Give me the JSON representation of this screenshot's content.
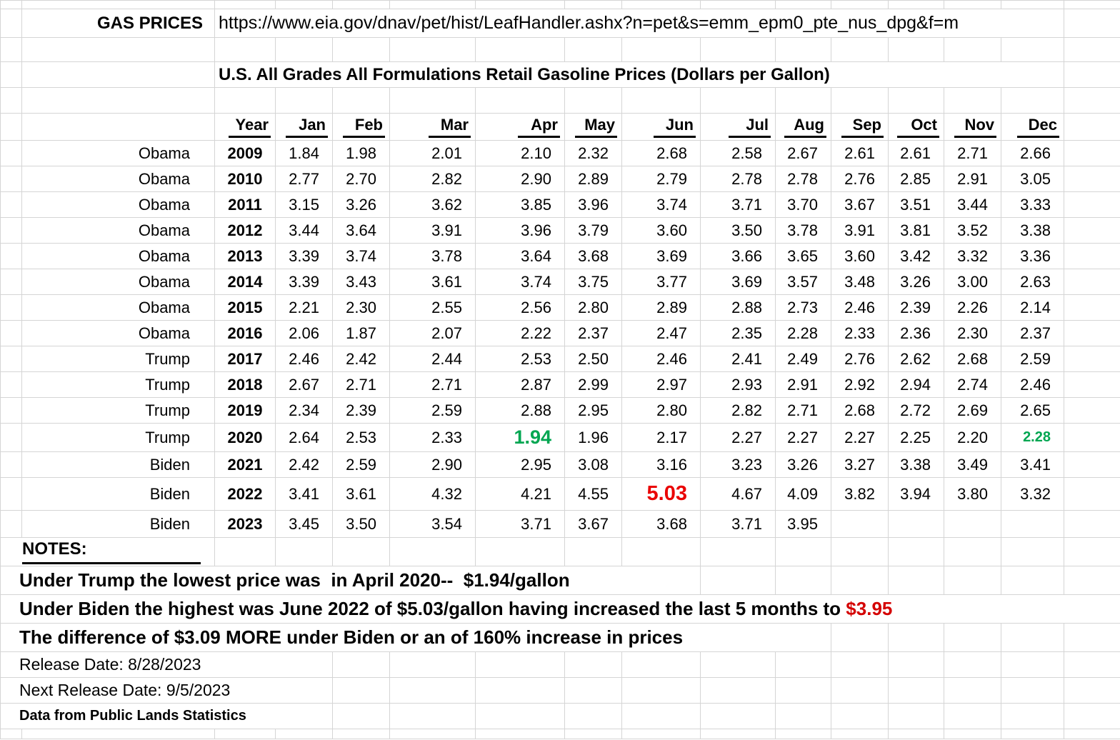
{
  "sheet": {
    "label": "GAS PRICES",
    "url": "https://www.eia.gov/dnav/pet/hist/LeafHandler.ashx?n=pet&s=emm_epm0_pte_nus_dpg&f=m",
    "title": "U.S. All Grades All Formulations Retail Gasoline Prices (Dollars per Gallon)"
  },
  "colors": {
    "highlight_green": "#00A651",
    "highlight_red": "#EA0000",
    "note_red": "#D40000"
  },
  "table": {
    "columns": [
      "Year",
      "Jan",
      "Feb",
      "Mar",
      "Apr",
      "May",
      "Jun",
      "Jul",
      "Aug",
      "Sep",
      "Oct",
      "Nov",
      "Dec"
    ],
    "rows": [
      {
        "president": "Obama",
        "year": "2009",
        "values": [
          "1.84",
          "1.98",
          "2.01",
          "2.10",
          "2.32",
          "2.68",
          "2.58",
          "2.67",
          "2.61",
          "2.61",
          "2.71",
          "2.66"
        ]
      },
      {
        "president": "Obama",
        "year": "2010",
        "values": [
          "2.77",
          "2.70",
          "2.82",
          "2.90",
          "2.89",
          "2.79",
          "2.78",
          "2.78",
          "2.76",
          "2.85",
          "2.91",
          "3.05"
        ]
      },
      {
        "president": "Obama",
        "year": "2011",
        "values": [
          "3.15",
          "3.26",
          "3.62",
          "3.85",
          "3.96",
          "3.74",
          "3.71",
          "3.70",
          "3.67",
          "3.51",
          "3.44",
          "3.33"
        ]
      },
      {
        "president": "Obama",
        "year": "2012",
        "values": [
          "3.44",
          "3.64",
          "3.91",
          "3.96",
          "3.79",
          "3.60",
          "3.50",
          "3.78",
          "3.91",
          "3.81",
          "3.52",
          "3.38"
        ]
      },
      {
        "president": "Obama",
        "year": "2013",
        "values": [
          "3.39",
          "3.74",
          "3.78",
          "3.64",
          "3.68",
          "3.69",
          "3.66",
          "3.65",
          "3.60",
          "3.42",
          "3.32",
          "3.36"
        ]
      },
      {
        "president": "Obama",
        "year": "2014",
        "values": [
          "3.39",
          "3.43",
          "3.61",
          "3.74",
          "3.75",
          "3.77",
          "3.69",
          "3.57",
          "3.48",
          "3.26",
          "3.00",
          "2.63"
        ]
      },
      {
        "president": "Obama",
        "year": "2015",
        "values": [
          "2.21",
          "2.30",
          "2.55",
          "2.56",
          "2.80",
          "2.89",
          "2.88",
          "2.73",
          "2.46",
          "2.39",
          "2.26",
          "2.14"
        ]
      },
      {
        "president": "Obama",
        "year": "2016",
        "values": [
          "2.06",
          "1.87",
          "2.07",
          "2.22",
          "2.37",
          "2.47",
          "2.35",
          "2.28",
          "2.33",
          "2.36",
          "2.30",
          "2.37"
        ]
      },
      {
        "president": "Trump",
        "year": "2017",
        "values": [
          "2.46",
          "2.42",
          "2.44",
          "2.53",
          "2.50",
          "2.46",
          "2.41",
          "2.49",
          "2.76",
          "2.62",
          "2.68",
          "2.59"
        ]
      },
      {
        "president": "Trump",
        "year": "2018",
        "values": [
          "2.67",
          "2.71",
          "2.71",
          "2.87",
          "2.99",
          "2.97",
          "2.93",
          "2.91",
          "2.92",
          "2.94",
          "2.74",
          "2.46"
        ]
      },
      {
        "president": "Trump",
        "year": "2019",
        "values": [
          "2.34",
          "2.39",
          "2.59",
          "2.88",
          "2.95",
          "2.80",
          "2.82",
          "2.71",
          "2.68",
          "2.72",
          "2.69",
          "2.65"
        ]
      },
      {
        "president": "Trump",
        "year": "2020",
        "values": [
          "2.64",
          "2.53",
          "2.33",
          "1.94",
          "1.96",
          "2.17",
          "2.27",
          "2.27",
          "2.27",
          "2.25",
          "2.20",
          "2.28"
        ]
      },
      {
        "president": "Biden",
        "year": "2021",
        "values": [
          "2.42",
          "2.59",
          "2.90",
          "2.95",
          "3.08",
          "3.16",
          "3.23",
          "3.26",
          "3.27",
          "3.38",
          "3.49",
          "3.41"
        ]
      },
      {
        "president": "Biden",
        "year": "2022",
        "values": [
          "3.41",
          "3.61",
          "4.32",
          "4.21",
          "4.55",
          "5.03",
          "4.67",
          "4.09",
          "3.82",
          "3.94",
          "3.80",
          "3.32"
        ]
      },
      {
        "president": "Biden",
        "year": "2023",
        "values": [
          "3.45",
          "3.50",
          "3.54",
          "3.71",
          "3.67",
          "3.68",
          "3.71",
          "3.95",
          "",
          "",
          "",
          ""
        ]
      }
    ],
    "highlights": [
      {
        "year": "2020",
        "month": "Apr",
        "style": "hl-green-large"
      },
      {
        "year": "2020",
        "month": "Dec",
        "style": "hl-green-bold"
      },
      {
        "year": "2022",
        "month": "Jun",
        "style": "hl-red-large"
      }
    ]
  },
  "notes": {
    "heading": "NOTES:",
    "line_trump": "Under Trump the lowest price was  in April 2020--  $1.94/gallon",
    "line_biden_prefix": "Under Biden the highest was June 2022 of $5.03/gallon having increased the last 5 months to ",
    "line_biden_highlight": "$3.95",
    "line_difference": "The difference of $3.09 MORE under Biden or an of 160% increase in prices",
    "release_date": "Release Date: 8/28/2023",
    "next_release_date": "Next Release Date: 9/5/2023",
    "source": "Data from Public Lands Statistics"
  }
}
